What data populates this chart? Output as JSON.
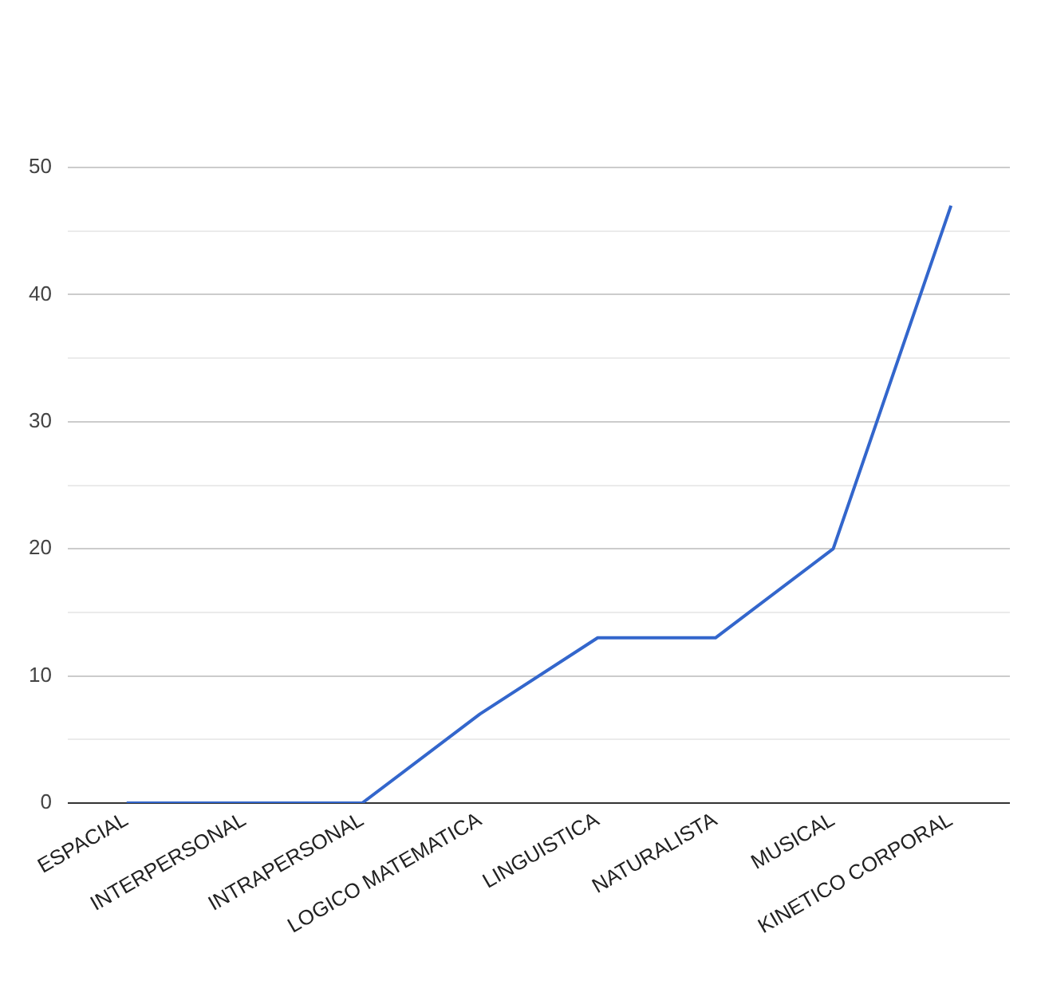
{
  "chart_data": {
    "type": "line",
    "categories": [
      "ESPACIAL",
      "INTERPERSONAL",
      "INTRAPERSONAL",
      "LOGICO MATEMATICA",
      "LINGUISTICA",
      "NATURALISTA",
      "MUSICAL",
      "KINETICO CORPORAL"
    ],
    "series": [
      {
        "color": "#3366cc",
        "values": [
          0,
          0,
          0,
          7,
          13,
          13,
          20,
          47
        ]
      }
    ],
    "ylim": [
      0,
      50
    ],
    "yticks": [
      0,
      {
        "value": 5,
        "label": null
      },
      10,
      {
        "value": 15,
        "label": null
      },
      20,
      {
        "value": 25,
        "label": null
      },
      30,
      {
        "value": 35,
        "label": null
      },
      40,
      {
        "value": 45,
        "label": null
      },
      50
    ],
    "grid": "y",
    "legend": false,
    "marker": "none",
    "line_style": "solid"
  }
}
